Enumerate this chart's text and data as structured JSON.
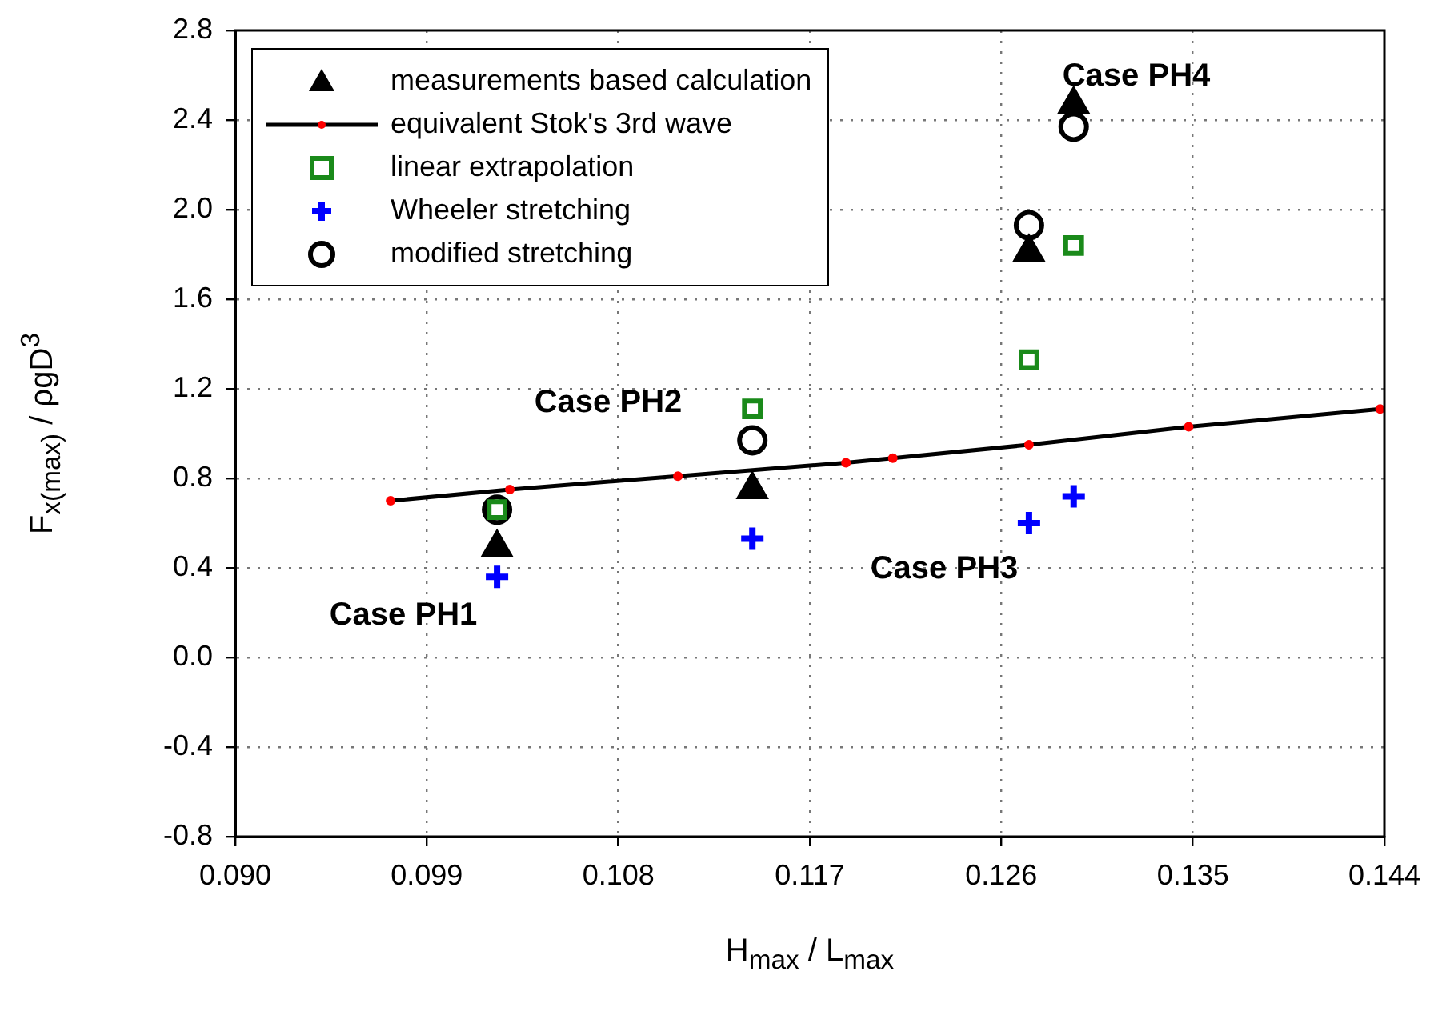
{
  "chart_data": {
    "type": "scatter",
    "xlabel": "H$_{max}$ / L$_{max}$",
    "ylabel": "F$_{x(max)}$ / ρgD$^{3}$",
    "xlim": [
      0.09,
      0.144
    ],
    "xticks": [
      {
        "value": 0.09,
        "label": "0.090"
      },
      {
        "value": 0.099,
        "label": "0.099"
      },
      {
        "value": 0.108,
        "label": "0.108"
      },
      {
        "value": 0.117,
        "label": "0.117"
      },
      {
        "value": 0.126,
        "label": "0.126"
      },
      {
        "value": 0.135,
        "label": "0.135"
      },
      {
        "value": 0.144,
        "label": "0.144"
      }
    ],
    "ylim": [
      -0.8,
      2.8
    ],
    "yticks": [
      {
        "value": -0.8,
        "label": "-0.8"
      },
      {
        "value": -0.4,
        "label": "-0.4"
      },
      {
        "value": 0,
        "label": "0.0"
      },
      {
        "value": 0.4,
        "label": "0.4"
      },
      {
        "value": 0.8,
        "label": "0.8"
      },
      {
        "value": 1.2,
        "label": "1.2"
      },
      {
        "value": 1.6,
        "label": "1.6"
      },
      {
        "value": 2.0,
        "label": "2.0"
      },
      {
        "value": 2.4,
        "label": "2.4"
      },
      {
        "value": 2.8,
        "label": "2.8"
      }
    ],
    "grid": true,
    "legend": "top left",
    "series": [
      {
        "name": "measurements based calculation",
        "type": "scatter",
        "marker": "triangle",
        "color": "#000000",
        "x": [
          0.1023,
          0.1143,
          0.1273,
          0.1294
        ],
        "values": [
          0.49,
          0.75,
          1.81,
          2.47
        ]
      },
      {
        "name": "equivalent Stok's 3rd wave",
        "type": "line",
        "marker": "circle",
        "color": "#000000",
        "colors": [
          "#ff0000",
          "#ff0000",
          "#ff0000",
          "#ff0000",
          "#ff0000",
          "#ff0000",
          "#ff0000",
          "#ff0000"
        ],
        "x": [
          0.0973,
          0.1029,
          0.1108,
          0.1187,
          0.1209,
          0.1273,
          0.1348,
          0.1438
        ],
        "values": [
          0.7,
          0.75,
          0.81,
          0.87,
          0.89,
          0.95,
          1.03,
          1.11
        ]
      },
      {
        "name": "linear extrapolation",
        "type": "scatter",
        "marker": "square",
        "color": "#1a8a1a",
        "x": [
          0.1023,
          0.1143,
          0.1273,
          0.1294
        ],
        "values": [
          0.66,
          1.11,
          1.33,
          1.84
        ]
      },
      {
        "name": "Wheeler stretching",
        "type": "scatter",
        "marker": "cross",
        "color": "#0000ff",
        "x": [
          0.1023,
          0.1143,
          0.1273,
          0.1294
        ],
        "values": [
          0.36,
          0.53,
          0.6,
          0.72
        ]
      },
      {
        "name": "modified stretching",
        "type": "scatter",
        "marker": "circle",
        "color": "#000000",
        "x": [
          0.1023,
          0.1143,
          0.1273,
          0.1294
        ],
        "values": [
          0.66,
          0.97,
          1.93,
          2.37
        ]
      }
    ],
    "annotations": [
      "Case PH1",
      "Case PH2",
      "Case PH3",
      "Case PH4"
    ]
  }
}
